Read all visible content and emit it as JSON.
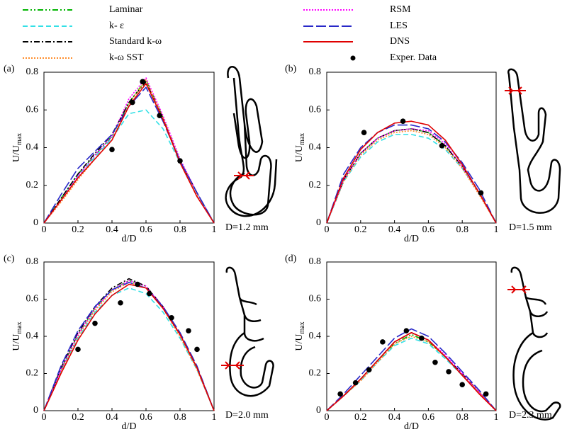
{
  "chart_data": [
    {
      "type": "line",
      "panel": "(a)",
      "caption": "D=1.2 mm",
      "xlabel": "d/D",
      "ylabel": "U/U",
      "ylabel_subscript": "max",
      "xlim": [
        0,
        1
      ],
      "ylim": [
        0,
        0.8
      ],
      "xticks": [
        0,
        0.2,
        0.4,
        0.6,
        0.8,
        1
      ],
      "yticks": [
        0,
        0.2,
        0.4,
        0.6,
        0.8
      ],
      "x": [
        0,
        0.1,
        0.2,
        0.3,
        0.4,
        0.5,
        0.6,
        0.7,
        0.8,
        0.9,
        1
      ],
      "series": [
        {
          "name": "Laminar",
          "color": "#00b400",
          "style": "dash-dot-dot",
          "values": [
            0,
            0.13,
            0.26,
            0.36,
            0.46,
            0.64,
            0.76,
            0.56,
            0.33,
            0.16,
            0
          ]
        },
        {
          "name": "k- ε",
          "color": "#33e0e6",
          "style": "dash",
          "values": [
            0,
            0.12,
            0.25,
            0.35,
            0.45,
            0.58,
            0.6,
            0.5,
            0.32,
            0.16,
            0
          ]
        },
        {
          "name": "Standard k-ω",
          "color": "#000000",
          "style": "dash-dot",
          "values": [
            0,
            0.13,
            0.26,
            0.37,
            0.47,
            0.64,
            0.75,
            0.55,
            0.33,
            0.16,
            0
          ]
        },
        {
          "name": "k-ω  SST",
          "color": "#ff8c2a",
          "style": "dot",
          "values": [
            0,
            0.11,
            0.23,
            0.34,
            0.44,
            0.63,
            0.76,
            0.56,
            0.33,
            0.15,
            0
          ]
        },
        {
          "name": "RSM",
          "color": "#ff00ff",
          "style": "dot",
          "values": [
            0,
            0.12,
            0.25,
            0.36,
            0.46,
            0.66,
            0.77,
            0.57,
            0.34,
            0.16,
            0
          ]
        },
        {
          "name": "LES",
          "color": "#2828c8",
          "style": "long-dash",
          "values": [
            0,
            0.15,
            0.29,
            0.38,
            0.47,
            0.62,
            0.72,
            0.54,
            0.33,
            0.16,
            0
          ]
        },
        {
          "name": "DNS",
          "color": "#e00000",
          "style": "solid",
          "values": [
            0,
            0.12,
            0.24,
            0.34,
            0.44,
            0.62,
            0.74,
            0.55,
            0.32,
            0.14,
            0
          ]
        }
      ],
      "points": {
        "name": "Exper. Data",
        "color": "#000000",
        "x": [
          0.4,
          0.52,
          0.58,
          0.68,
          0.8
        ],
        "values": [
          0.39,
          0.64,
          0.75,
          0.57,
          0.33
        ]
      }
    },
    {
      "type": "line",
      "panel": "(b)",
      "caption": "D=1.5 mm",
      "xlabel": "d/D",
      "ylabel": "U/U",
      "ylabel_subscript": "max",
      "xlim": [
        0,
        1
      ],
      "ylim": [
        0,
        0.8
      ],
      "xticks": [
        0,
        0.2,
        0.4,
        0.6,
        0.8,
        1
      ],
      "yticks": [
        0,
        0.2,
        0.4,
        0.6,
        0.8
      ],
      "x": [
        0,
        0.1,
        0.2,
        0.3,
        0.4,
        0.5,
        0.6,
        0.7,
        0.8,
        0.9,
        1
      ],
      "series": [
        {
          "name": "Laminar",
          "color": "#00b400",
          "style": "dash-dot-dot",
          "values": [
            0,
            0.23,
            0.37,
            0.45,
            0.49,
            0.5,
            0.48,
            0.41,
            0.3,
            0.16,
            0
          ]
        },
        {
          "name": "k- ε",
          "color": "#33e0e6",
          "style": "dash",
          "values": [
            0,
            0.22,
            0.35,
            0.43,
            0.47,
            0.47,
            0.45,
            0.39,
            0.29,
            0.16,
            0
          ]
        },
        {
          "name": "Standard k-ω",
          "color": "#000000",
          "style": "dash-dot",
          "values": [
            0,
            0.23,
            0.37,
            0.45,
            0.49,
            0.5,
            0.48,
            0.41,
            0.3,
            0.16,
            0
          ]
        },
        {
          "name": "k-ω  SST",
          "color": "#ff8c2a",
          "style": "dot",
          "values": [
            0,
            0.22,
            0.36,
            0.44,
            0.48,
            0.49,
            0.47,
            0.4,
            0.29,
            0.15,
            0
          ]
        },
        {
          "name": "RSM",
          "color": "#ff00ff",
          "style": "dot",
          "values": [
            0,
            0.23,
            0.37,
            0.45,
            0.49,
            0.5,
            0.49,
            0.42,
            0.3,
            0.16,
            0
          ]
        },
        {
          "name": "LES",
          "color": "#2828c8",
          "style": "long-dash",
          "values": [
            0,
            0.26,
            0.4,
            0.48,
            0.52,
            0.52,
            0.5,
            0.43,
            0.32,
            0.18,
            0
          ]
        },
        {
          "name": "DNS",
          "color": "#e00000",
          "style": "solid",
          "values": [
            0,
            0.24,
            0.39,
            0.48,
            0.53,
            0.54,
            0.52,
            0.44,
            0.31,
            0.16,
            0
          ]
        }
      ],
      "points": {
        "name": "Exper. Data",
        "color": "#000000",
        "x": [
          0.22,
          0.45,
          0.68,
          0.91
        ],
        "values": [
          0.48,
          0.54,
          0.41,
          0.16
        ]
      }
    },
    {
      "type": "line",
      "panel": "(c)",
      "caption": "D=2.0 mm",
      "xlabel": "d/D",
      "ylabel": "U/U",
      "ylabel_subscript": "max",
      "xlim": [
        0,
        1
      ],
      "ylim": [
        0,
        0.8
      ],
      "xticks": [
        0,
        0.2,
        0.4,
        0.6,
        0.8,
        1
      ],
      "yticks": [
        0,
        0.2,
        0.4,
        0.6,
        0.8
      ],
      "x": [
        0,
        0.1,
        0.2,
        0.3,
        0.4,
        0.5,
        0.6,
        0.7,
        0.8,
        0.9,
        1
      ],
      "series": [
        {
          "name": "Laminar",
          "color": "#00b400",
          "style": "dash-dot-dot",
          "values": [
            0,
            0.22,
            0.41,
            0.55,
            0.65,
            0.7,
            0.67,
            0.56,
            0.41,
            0.23,
            0
          ]
        },
        {
          "name": "k- ε",
          "color": "#33e0e6",
          "style": "dash",
          "values": [
            0,
            0.21,
            0.39,
            0.53,
            0.62,
            0.66,
            0.63,
            0.53,
            0.39,
            0.22,
            0
          ]
        },
        {
          "name": "Standard k-ω",
          "color": "#000000",
          "style": "dash-dot",
          "values": [
            0,
            0.23,
            0.42,
            0.56,
            0.66,
            0.71,
            0.67,
            0.56,
            0.41,
            0.23,
            0
          ]
        },
        {
          "name": "k-ω  SST",
          "color": "#ff8c2a",
          "style": "dot",
          "values": [
            0,
            0.21,
            0.4,
            0.54,
            0.64,
            0.69,
            0.66,
            0.55,
            0.4,
            0.22,
            0
          ]
        },
        {
          "name": "RSM",
          "color": "#ff00ff",
          "style": "dot",
          "values": [
            0,
            0.22,
            0.41,
            0.55,
            0.65,
            0.7,
            0.67,
            0.56,
            0.41,
            0.23,
            0
          ]
        },
        {
          "name": "LES",
          "color": "#2828c8",
          "style": "long-dash",
          "values": [
            0,
            0.24,
            0.43,
            0.56,
            0.65,
            0.69,
            0.66,
            0.56,
            0.42,
            0.24,
            0
          ]
        },
        {
          "name": "DNS",
          "color": "#e00000",
          "style": "solid",
          "values": [
            0,
            0.2,
            0.38,
            0.52,
            0.62,
            0.68,
            0.66,
            0.55,
            0.41,
            0.23,
            0
          ]
        }
      ],
      "points": {
        "name": "Exper. Data",
        "color": "#000000",
        "x": [
          0.2,
          0.3,
          0.45,
          0.55,
          0.62,
          0.75,
          0.85,
          0.9
        ],
        "values": [
          0.33,
          0.47,
          0.58,
          0.68,
          0.63,
          0.5,
          0.43,
          0.33
        ]
      }
    },
    {
      "type": "line",
      "panel": "(d)",
      "caption": "D=2.3 mm",
      "xlabel": "d/D",
      "ylabel": "U/U",
      "ylabel_subscript": "max",
      "xlim": [
        0,
        1
      ],
      "ylim": [
        0,
        0.8
      ],
      "xticks": [
        0,
        0.2,
        0.4,
        0.6,
        0.8,
        1
      ],
      "yticks": [
        0,
        0.2,
        0.4,
        0.6,
        0.8
      ],
      "x": [
        0,
        0.1,
        0.2,
        0.3,
        0.4,
        0.5,
        0.6,
        0.7,
        0.8,
        0.9,
        1
      ],
      "series": [
        {
          "name": "Laminar",
          "color": "#00b400",
          "style": "dash-dot-dot",
          "values": [
            0,
            0.08,
            0.17,
            0.27,
            0.36,
            0.41,
            0.37,
            0.29,
            0.19,
            0.1,
            0
          ]
        },
        {
          "name": "k- ε",
          "color": "#33e0e6",
          "style": "dash",
          "values": [
            0,
            0.08,
            0.16,
            0.26,
            0.35,
            0.39,
            0.36,
            0.28,
            0.19,
            0.1,
            0
          ]
        },
        {
          "name": "Standard k-ω",
          "color": "#000000",
          "style": "dash-dot",
          "values": [
            0,
            0.08,
            0.17,
            0.27,
            0.37,
            0.42,
            0.38,
            0.29,
            0.2,
            0.1,
            0
          ]
        },
        {
          "name": "k-ω  SST",
          "color": "#ff8c2a",
          "style": "dot",
          "values": [
            0,
            0.08,
            0.16,
            0.26,
            0.36,
            0.4,
            0.37,
            0.29,
            0.19,
            0.1,
            0
          ]
        },
        {
          "name": "RSM",
          "color": "#ff00ff",
          "style": "dot",
          "values": [
            0,
            0.08,
            0.17,
            0.27,
            0.37,
            0.42,
            0.38,
            0.3,
            0.2,
            0.1,
            0
          ]
        },
        {
          "name": "LES",
          "color": "#2828c8",
          "style": "long-dash",
          "values": [
            0,
            0.09,
            0.19,
            0.29,
            0.39,
            0.44,
            0.4,
            0.31,
            0.21,
            0.11,
            0
          ]
        },
        {
          "name": "DNS",
          "color": "#e00000",
          "style": "solid",
          "values": [
            0,
            0.08,
            0.17,
            0.27,
            0.37,
            0.42,
            0.38,
            0.29,
            0.19,
            0.09,
            0
          ]
        }
      ],
      "points": {
        "name": "Exper. Data",
        "color": "#000000",
        "x": [
          0.08,
          0.17,
          0.25,
          0.33,
          0.47,
          0.56,
          0.64,
          0.72,
          0.8,
          0.94
        ],
        "values": [
          0.09,
          0.15,
          0.22,
          0.37,
          0.43,
          0.39,
          0.26,
          0.21,
          0.14,
          0.09
        ]
      }
    }
  ]
}
